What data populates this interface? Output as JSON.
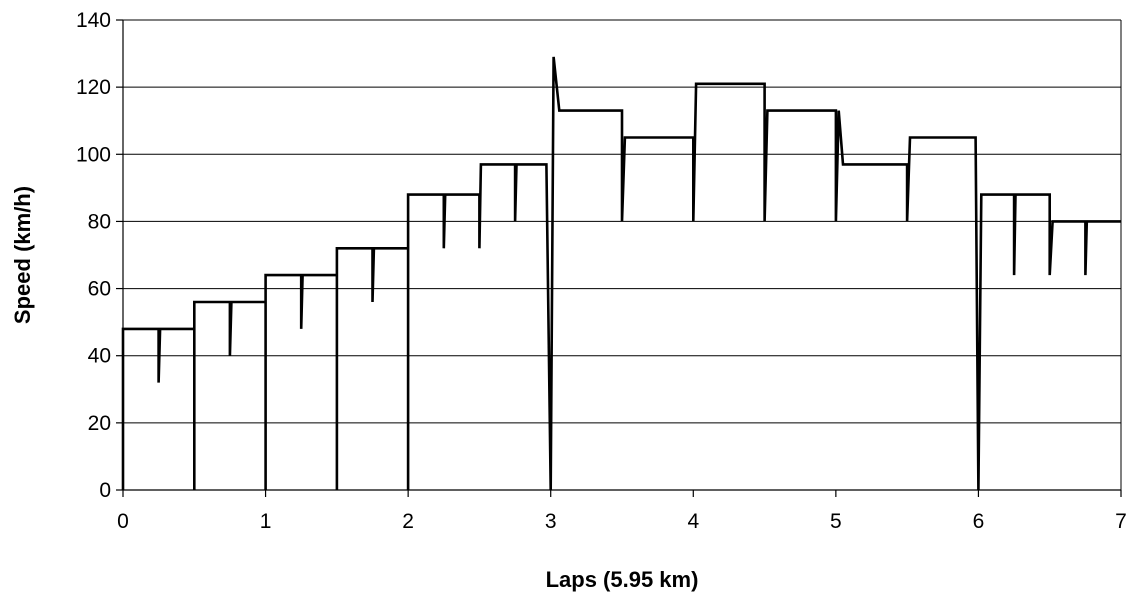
{
  "chart_data": {
    "type": "line",
    "title": "",
    "xlabel": "Laps (5.95 km)",
    "ylabel": "Speed (km/h)",
    "xlim": [
      0,
      7
    ],
    "ylim": [
      0,
      140
    ],
    "x_ticks": [
      0,
      1,
      2,
      3,
      4,
      5,
      6,
      7
    ],
    "y_ticks": [
      0,
      20,
      40,
      60,
      80,
      100,
      120,
      140
    ],
    "grid": "horizontal",
    "legend": "none",
    "series": [
      {
        "color": "#000000",
        "points": [
          [
            0,
            0
          ],
          [
            0,
            48
          ],
          [
            0.25,
            48
          ],
          [
            0.25,
            32
          ],
          [
            0.26,
            48
          ],
          [
            0.5,
            48
          ],
          [
            0.5,
            0
          ],
          [
            0.5,
            56
          ],
          [
            0.75,
            56
          ],
          [
            0.75,
            40
          ],
          [
            0.76,
            56
          ],
          [
            1.0,
            56
          ],
          [
            1.0,
            0
          ],
          [
            1.0,
            64
          ],
          [
            1.25,
            64
          ],
          [
            1.25,
            48
          ],
          [
            1.26,
            64
          ],
          [
            1.5,
            64
          ],
          [
            1.5,
            0
          ],
          [
            1.5,
            72
          ],
          [
            1.75,
            72
          ],
          [
            1.75,
            56
          ],
          [
            1.76,
            72
          ],
          [
            2.0,
            72
          ],
          [
            2.0,
            0
          ],
          [
            2.0,
            88
          ],
          [
            2.25,
            88
          ],
          [
            2.25,
            72
          ],
          [
            2.26,
            88
          ],
          [
            2.5,
            88
          ],
          [
            2.5,
            72
          ],
          [
            2.51,
            97
          ],
          [
            2.75,
            97
          ],
          [
            2.75,
            80
          ],
          [
            2.76,
            97
          ],
          [
            2.97,
            97
          ],
          [
            3.0,
            0
          ],
          [
            3.02,
            129
          ],
          [
            3.06,
            113
          ],
          [
            3.5,
            113
          ],
          [
            3.5,
            80
          ],
          [
            3.52,
            105
          ],
          [
            4.0,
            105
          ],
          [
            4.0,
            80
          ],
          [
            4.02,
            121
          ],
          [
            4.5,
            121
          ],
          [
            4.5,
            80
          ],
          [
            4.52,
            113
          ],
          [
            5.0,
            113
          ],
          [
            5.0,
            80
          ],
          [
            5.02,
            113
          ],
          [
            5.05,
            97
          ],
          [
            5.5,
            97
          ],
          [
            5.5,
            80
          ],
          [
            5.52,
            105
          ],
          [
            5.98,
            105
          ],
          [
            6.0,
            0
          ],
          [
            6.02,
            88
          ],
          [
            6.25,
            88
          ],
          [
            6.25,
            64
          ],
          [
            6.26,
            88
          ],
          [
            6.5,
            88
          ],
          [
            6.5,
            64
          ],
          [
            6.52,
            80
          ],
          [
            6.75,
            80
          ],
          [
            6.75,
            64
          ],
          [
            6.76,
            80
          ],
          [
            7.0,
            80
          ]
        ]
      }
    ]
  }
}
